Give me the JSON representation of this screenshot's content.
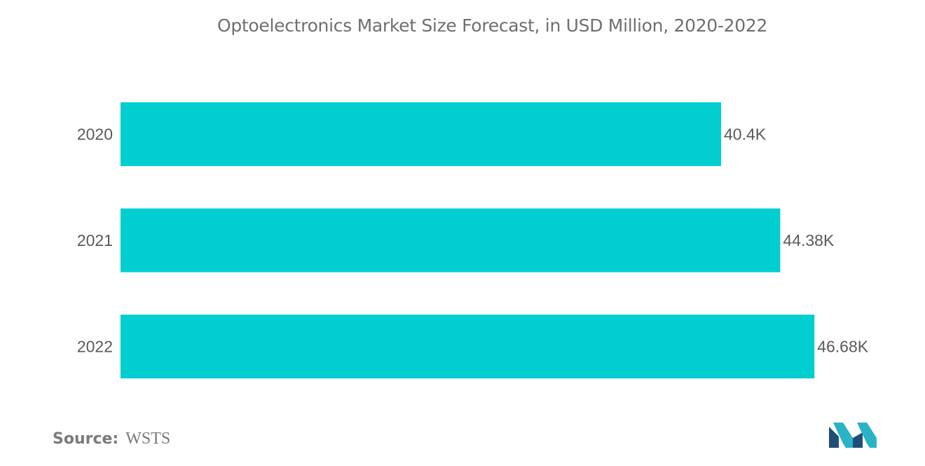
{
  "colors": {
    "bar": "#00CED1",
    "text": "#5a5a5a",
    "logo_dark": "#1f4e79",
    "logo_light": "#2ab3c4"
  },
  "chart_data": {
    "type": "bar",
    "orientation": "horizontal",
    "title": "Optoelectronics Market Size Forecast, in USD Million, 2020-2022",
    "categories": [
      "2020",
      "2021",
      "2022"
    ],
    "values": [
      40400,
      44380,
      46680
    ],
    "value_labels": [
      "40.4K",
      "44.38K",
      "46.68K"
    ],
    "xlabel": "",
    "ylabel": "",
    "grid": false,
    "legend": false
  },
  "source": {
    "label": "Source:",
    "value": "WSTS"
  },
  "logo": {
    "icon": "mordor-intelligence-logo-icon"
  }
}
